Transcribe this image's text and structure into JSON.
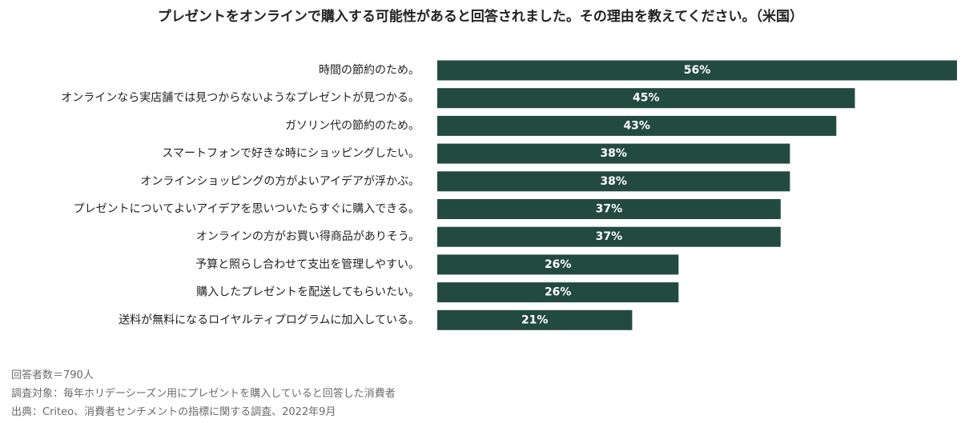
{
  "chart_data": {
    "type": "bar",
    "orientation": "horizontal",
    "title": "プレゼントをオンラインで購入する可能性があると回答されました。その理由を教えてください。（米国）",
    "categories": [
      "時間の節約のため。",
      "オンラインなら実店舗では見つからないようなプレゼントが見つかる。",
      "ガソリン代の節約のため。",
      "スマートフォンで好きな時にショッピングしたい。",
      "オンラインショッピングの方がよいアイデアが浮かぶ。",
      "プレゼントについてよいアイデアを思いついたらすぐに購入できる。",
      "オンラインの方がお買い得商品がありそう。",
      "予算と照らし合わせて支出を管理しやすい。",
      "購入したプレゼントを配送してもらいたい。",
      "送料が無料になるロイヤルティプログラムに加入している。"
    ],
    "values": [
      56,
      45,
      43,
      38,
      38,
      37,
      37,
      26,
      26,
      21
    ],
    "value_labels": [
      "56%",
      "45%",
      "43%",
      "38%",
      "38%",
      "37%",
      "37%",
      "26%",
      "26%",
      "21%"
    ],
    "xlim": [
      0,
      56
    ],
    "grid": false,
    "legend": "none",
    "bar_color": "#234a40",
    "label_color": "#ffffff"
  },
  "notes": [
    "回答者数＝790人",
    "調査対象：毎年ホリデーシーズン用にプレゼントを購入していると回答した消費者",
    "出典：Criteo、消費者センチメントの指標に関する調査、2022年9月"
  ]
}
